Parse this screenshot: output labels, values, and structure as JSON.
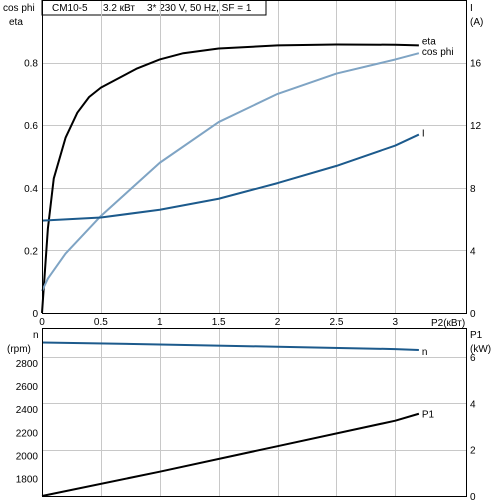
{
  "header": {
    "model": "CM10-5",
    "power": "3.2 кВт",
    "supply": "3* 230 V, 50 Hz, SF = 1"
  },
  "colors": {
    "eta": "#000000",
    "cos_phi": "#7fa4c4",
    "current": "#1c5a8c",
    "speed": "#1c5a8c",
    "p1": "#000000",
    "grid": "#c8c8c8"
  },
  "chart_data": [
    {
      "type": "line",
      "id": "upper",
      "grid": true,
      "xlabel": "P2(кВт)",
      "xlim": [
        0,
        3.6
      ],
      "xticks": [
        "0",
        "0.5",
        "1",
        "1.5",
        "2",
        "2.5",
        "3"
      ],
      "xtick_values": [
        0,
        0.5,
        1,
        1.5,
        2,
        2.5,
        3
      ],
      "left_axis": {
        "label_lines": [
          "cos phi",
          "eta"
        ],
        "ylim": [
          0,
          1.0
        ],
        "ticks": [
          "0",
          "0.2",
          "0.4",
          "0.6",
          "0.8"
        ],
        "tick_values": [
          0,
          0.2,
          0.4,
          0.6,
          0.8
        ]
      },
      "right_axis": {
        "label_lines": [
          "I",
          "(A)"
        ],
        "ylim": [
          0,
          20
        ],
        "ticks": [
          "0",
          "4",
          "8",
          "12",
          "16"
        ],
        "tick_values": [
          0,
          4,
          8,
          12,
          16
        ]
      },
      "series": [
        {
          "name": "eta",
          "axis": "left",
          "color_key": "eta",
          "x": [
            0,
            0.05,
            0.1,
            0.2,
            0.3,
            0.4,
            0.5,
            0.6,
            0.8,
            1.0,
            1.2,
            1.5,
            2.0,
            2.5,
            3.0,
            3.2
          ],
          "y": [
            0,
            0.27,
            0.43,
            0.56,
            0.64,
            0.69,
            0.72,
            0.74,
            0.78,
            0.81,
            0.83,
            0.845,
            0.855,
            0.858,
            0.857,
            0.855
          ]
        },
        {
          "name": "cos phi",
          "axis": "left",
          "color_key": "cos_phi",
          "x": [
            0,
            0.05,
            0.2,
            0.5,
            1.0,
            1.5,
            2.0,
            2.5,
            3.0,
            3.2
          ],
          "y": [
            0.07,
            0.11,
            0.19,
            0.31,
            0.48,
            0.61,
            0.7,
            0.765,
            0.81,
            0.83
          ]
        },
        {
          "name": "I",
          "axis": "right",
          "color_key": "current",
          "x": [
            0,
            0.5,
            1.0,
            1.5,
            2.0,
            2.5,
            3.0,
            3.2
          ],
          "y": [
            5.9,
            6.1,
            6.6,
            7.3,
            8.3,
            9.4,
            10.7,
            11.4
          ]
        }
      ]
    },
    {
      "type": "line",
      "id": "lower",
      "grid": true,
      "xlim": [
        0,
        3.6
      ],
      "xtick_values": [
        0,
        0.5,
        1,
        1.5,
        2,
        2.5,
        3
      ],
      "left_axis": {
        "label_lines": [
          "n",
          "(rpm)"
        ],
        "ylim": [
          1650,
          3100
        ],
        "ticks": [
          "1800",
          "2000",
          "2200",
          "2400",
          "2600",
          "2800"
        ],
        "tick_values": [
          1800,
          2000,
          2200,
          2400,
          2600,
          2800
        ]
      },
      "right_axis": {
        "label_lines": [
          "P1",
          "(kW)"
        ],
        "ylim": [
          0,
          7.25
        ],
        "ticks": [
          "0",
          "2",
          "4",
          "6"
        ],
        "tick_values": [
          0,
          2,
          4,
          6
        ]
      },
      "series": [
        {
          "name": "n",
          "axis": "left",
          "color_key": "speed",
          "x": [
            0,
            1.0,
            2.0,
            3.0,
            3.2
          ],
          "y": [
            2975,
            2958,
            2938,
            2918,
            2910
          ]
        },
        {
          "name": "P1",
          "axis": "right",
          "color_key": "p1",
          "x": [
            0,
            1.0,
            2.0,
            3.0,
            3.2
          ],
          "y": [
            0.0,
            1.05,
            2.15,
            3.25,
            3.55
          ]
        }
      ]
    }
  ]
}
